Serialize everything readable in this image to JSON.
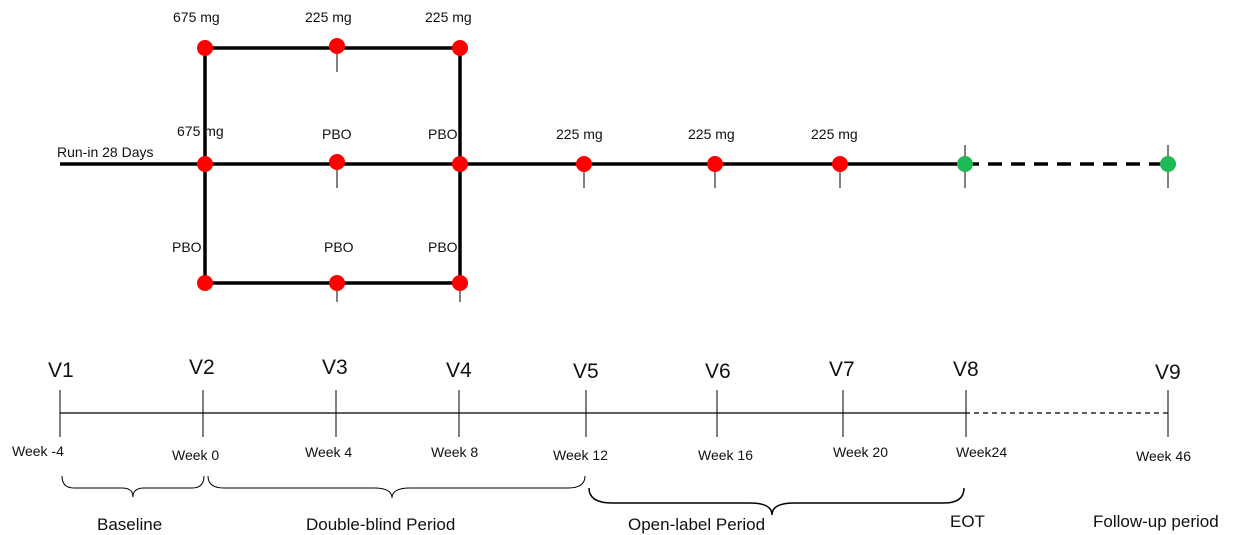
{
  "colors": {
    "active_dot": "#ff0000",
    "followup_dot": "#1db954",
    "line": "#000000"
  },
  "run_in_label": "Run-in 28 Days",
  "arms": {
    "upper": [
      "675 mg",
      "225 mg",
      "225 mg"
    ],
    "middle": [
      "675 mg",
      "PBO",
      "PBO"
    ],
    "lower": [
      "PBO",
      "PBO",
      "PBO"
    ]
  },
  "open_label_doses": [
    "225 mg",
    "225 mg",
    "225 mg"
  ],
  "visits": [
    "V1",
    "V2",
    "V3",
    "V4",
    "V5",
    "V6",
    "V7",
    "V8",
    "V9"
  ],
  "weeks": [
    "Week -4",
    "Week 0",
    "Week 4",
    "Week 8",
    "Week 12",
    "Week 16",
    "Week 20",
    "Week24",
    "Week 46"
  ],
  "periods": {
    "baseline": "Baseline",
    "double_blind": "Double-blind Period",
    "open_label": "Open-label Period",
    "eot": "EOT",
    "follow_up": "Follow-up period"
  }
}
